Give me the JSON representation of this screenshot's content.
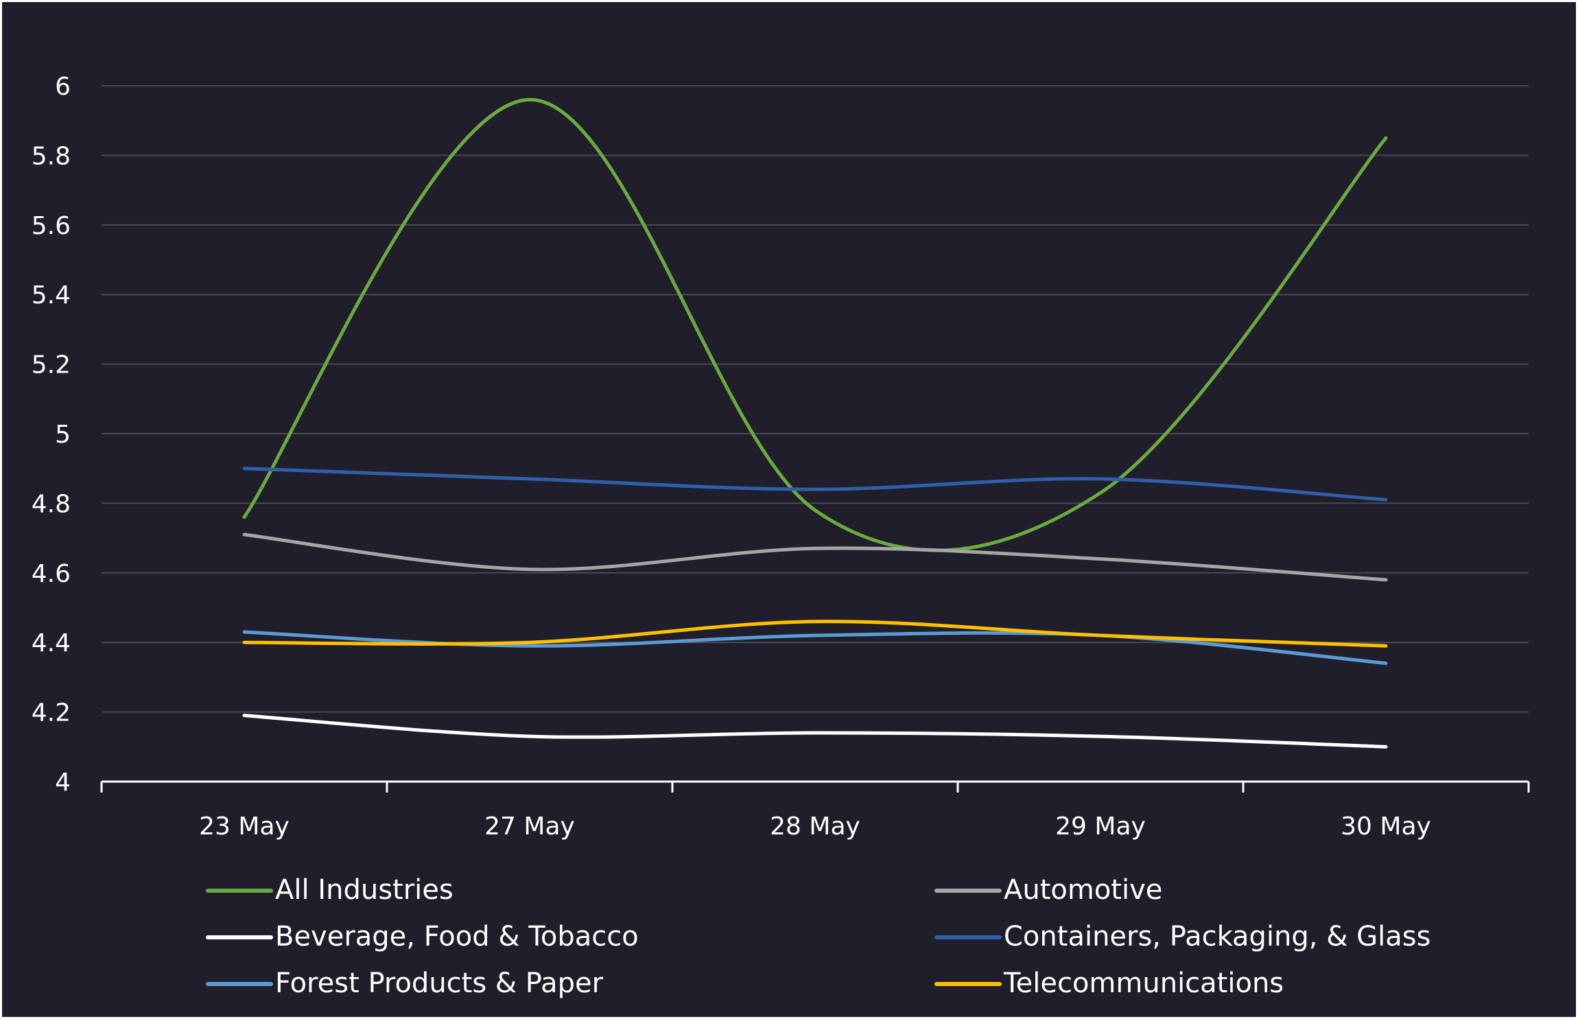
{
  "chart_data": {
    "type": "line",
    "x": [
      "23 May",
      "27 May",
      "28 May",
      "29 May",
      "30 May"
    ],
    "ylim": [
      4,
      6
    ],
    "yticks": [
      "4",
      "4.2",
      "4.4",
      "4.6",
      "4.8",
      "5",
      "5.2",
      "5.4",
      "5.6",
      "5.8",
      "6"
    ],
    "grid": true,
    "legend_position": "bottom",
    "series": [
      {
        "name": "All Industries",
        "color": "#6aab3f",
        "values": [
          4.76,
          5.96,
          4.78,
          4.83,
          5.85
        ]
      },
      {
        "name": "Automotive",
        "color": "#a6a6a6",
        "values": [
          4.71,
          4.61,
          4.67,
          4.64,
          4.58
        ]
      },
      {
        "name": "Beverage, Food & Tobacco",
        "color": "#ffffff",
        "values": [
          4.19,
          4.13,
          4.14,
          4.13,
          4.1
        ]
      },
      {
        "name": "Containers, Packaging, & Glass",
        "color": "#2f5fa8",
        "values": [
          4.9,
          4.87,
          4.84,
          4.87,
          4.81
        ]
      },
      {
        "name": "Forest Products & Paper",
        "color": "#5b9bd5",
        "values": [
          4.43,
          4.39,
          4.42,
          4.42,
          4.34
        ]
      },
      {
        "name": "Telecommunications",
        "color": "#ffc000",
        "values": [
          4.4,
          4.4,
          4.46,
          4.42,
          4.39
        ]
      }
    ]
  }
}
